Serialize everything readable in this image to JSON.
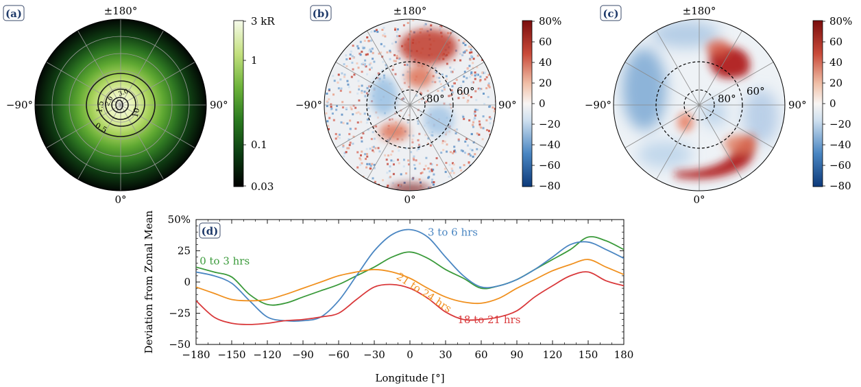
{
  "panels": [
    {
      "label": "(a)",
      "type": "polar-heatmap",
      "direction_labels": {
        "top": "±180°",
        "bottom": "0°",
        "left": "−90°",
        "right": "90°"
      },
      "contour_labels": [
        "0.5",
        "1.5",
        "10",
        "2.0",
        "3.0"
      ],
      "colorbar": {
        "scale": "log",
        "range": [
          0.03,
          3
        ],
        "ticks": [
          "3 kR",
          "1",
          "0.1",
          "0.03"
        ],
        "colors": [
          "#000000",
          "#0b3d12",
          "#2a7a1f",
          "#6db33a",
          "#c3e07e",
          "#f6faea"
        ]
      }
    },
    {
      "label": "(b)",
      "type": "polar-heatmap",
      "direction_labels": {
        "top": "±180°",
        "bottom": "0°",
        "left": "−90°",
        "right": "90°"
      },
      "circle_labels": [
        "80°",
        "60°"
      ],
      "colorbar": {
        "range": [
          -80,
          80
        ],
        "ticks": [
          "80%",
          "60",
          "40",
          "20",
          "0",
          "−20",
          "−40",
          "−60",
          "−80"
        ],
        "colors": [
          "#0d3a7a",
          "#4a86c2",
          "#cfe0ef",
          "#f8f5f3",
          "#f0c0a8",
          "#c94b3a",
          "#7a0d0d"
        ]
      }
    },
    {
      "label": "(c)",
      "type": "polar-heatmap",
      "direction_labels": {
        "top": "±180°",
        "bottom": "0°",
        "left": "−90°",
        "right": "90°"
      },
      "circle_labels": [
        "80°",
        "60°"
      ],
      "colorbar": {
        "range": [
          -80,
          80
        ],
        "ticks": [
          "80%",
          "60",
          "40",
          "20",
          "0",
          "−20",
          "−40",
          "−60",
          "−80"
        ],
        "colors": [
          "#0d3a7a",
          "#4a86c2",
          "#cfe0ef",
          "#f8f5f3",
          "#f0c0a8",
          "#c94b3a",
          "#7a0d0d"
        ]
      }
    }
  ],
  "chart_data": {
    "type": "line",
    "label": "(d)",
    "xlabel": "Longitude [°]",
    "ylabel": "Deviation from Zonal Mean",
    "xlim": [
      -180,
      180
    ],
    "ylim": [
      -50,
      50
    ],
    "xticks": [
      -180,
      -150,
      -120,
      -90,
      -60,
      -30,
      0,
      30,
      60,
      90,
      120,
      150,
      180
    ],
    "xtick_labels": [
      "−180",
      "−150",
      "−120",
      "−90",
      "−60",
      "−30",
      "0",
      "30",
      "60",
      "90",
      "120",
      "150",
      "180"
    ],
    "yticks": [
      50,
      25,
      0,
      -25,
      -50
    ],
    "ytick_labels": [
      "50%",
      "25",
      "0",
      "−25",
      "−50"
    ],
    "x": [
      -180,
      -165,
      -150,
      -135,
      -120,
      -105,
      -90,
      -75,
      -60,
      -45,
      -30,
      -15,
      0,
      15,
      30,
      45,
      60,
      75,
      90,
      105,
      120,
      135,
      150,
      165,
      180
    ],
    "series": [
      {
        "name": "0 to 3 hrs",
        "color": "#3a9a3a",
        "values": [
          12,
          8,
          4,
          -10,
          -18,
          -17,
          -12,
          -7,
          -2,
          5,
          12,
          20,
          24,
          19,
          10,
          3,
          -5,
          -3,
          2,
          10,
          18,
          26,
          36,
          33,
          26
        ]
      },
      {
        "name": "3 to 6 hrs",
        "color": "#4a86c2",
        "values": [
          8,
          5,
          -1,
          -15,
          -28,
          -31,
          -31,
          -28,
          -15,
          5,
          25,
          38,
          42,
          36,
          20,
          5,
          -4,
          -3,
          2,
          10,
          20,
          30,
          32,
          26,
          19
        ]
      },
      {
        "name": "21 to 24 hrs",
        "color": "#f0901e",
        "values": [
          -4,
          -9,
          -14,
          -15,
          -14,
          -10,
          -5,
          0,
          5,
          8,
          10,
          8,
          3,
          -5,
          -12,
          -16,
          -17,
          -13,
          -5,
          2,
          9,
          14,
          18,
          12,
          6
        ]
      },
      {
        "name": "18 to 21 hrs",
        "color": "#d9383a",
        "values": [
          -15,
          -28,
          -33,
          -34,
          -33,
          -31,
          -30,
          -28,
          -25,
          -14,
          -4,
          -2,
          -5,
          -13,
          -24,
          -30,
          -30,
          -28,
          -23,
          -12,
          -3,
          5,
          8,
          1,
          -3
        ]
      }
    ],
    "annotations": [
      {
        "text": "0 to 3 hrs",
        "series": 0
      },
      {
        "text": "3 to 6 hrs",
        "series": 1
      },
      {
        "text": "21 to 24 hrs",
        "series": 2
      },
      {
        "text": "18 to 21 hrs",
        "series": 3
      }
    ]
  }
}
